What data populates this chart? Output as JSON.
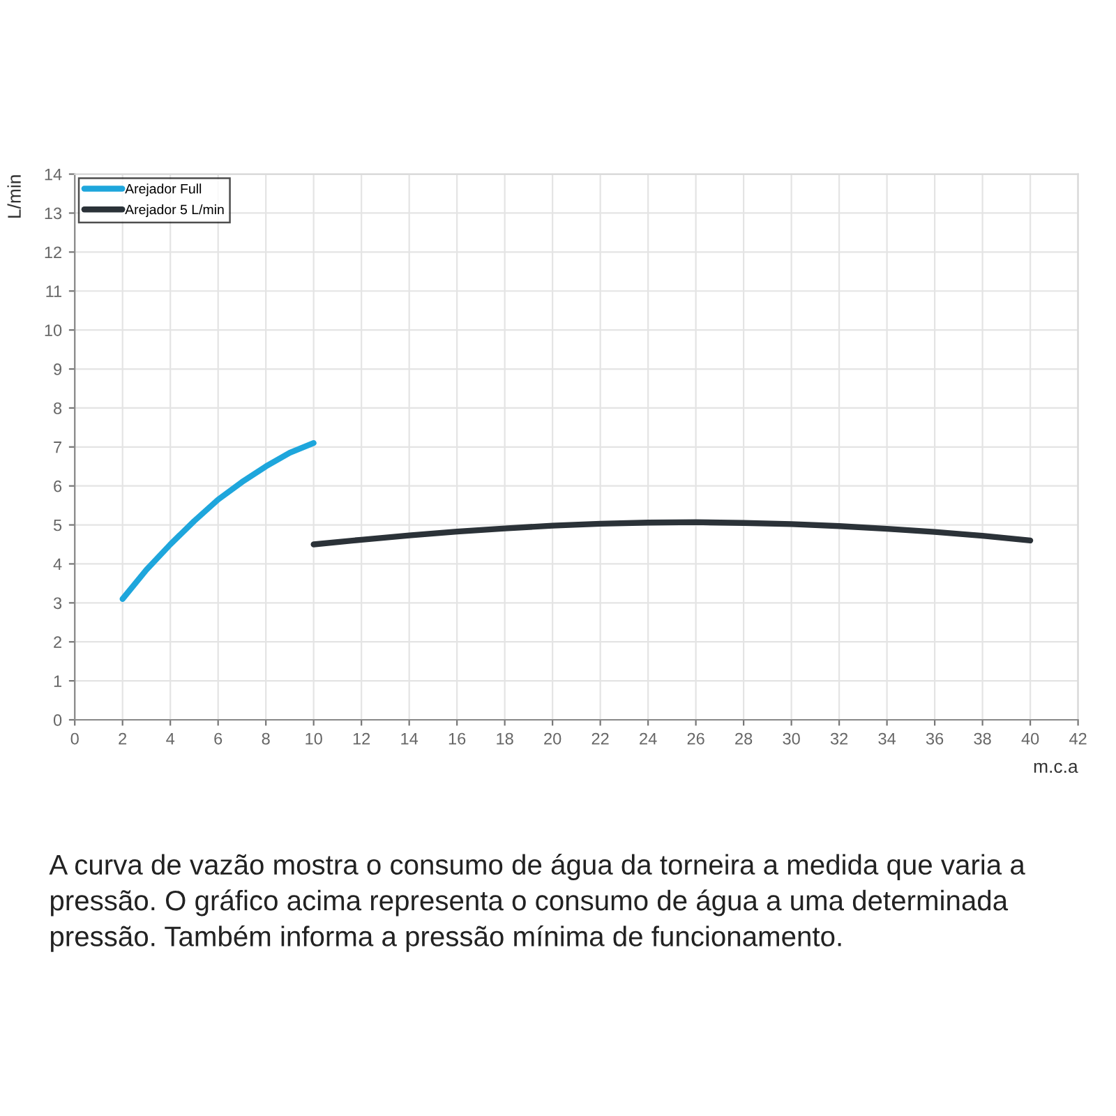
{
  "chart_data": {
    "type": "line",
    "xlabel": "m.c.a",
    "ylabel": "L/min",
    "series": [
      {
        "name": "Arejador Full",
        "color": "#1ea6dc",
        "x": [
          2,
          3,
          4,
          5,
          6,
          7,
          8,
          9,
          10
        ],
        "values": [
          3.1,
          3.85,
          4.5,
          5.1,
          5.65,
          6.1,
          6.5,
          6.85,
          7.1
        ]
      },
      {
        "name": "Arejador 5 L/min",
        "color": "#2b3238",
        "x": [
          10,
          12,
          14,
          16,
          18,
          20,
          22,
          24,
          26,
          28,
          30,
          32,
          34,
          36,
          38,
          40
        ],
        "values": [
          4.5,
          4.62,
          4.73,
          4.83,
          4.91,
          4.98,
          5.03,
          5.06,
          5.07,
          5.05,
          5.02,
          4.97,
          4.9,
          4.82,
          4.72,
          4.6
        ]
      }
    ],
    "xlim": [
      0,
      42
    ],
    "xticks": [
      0,
      2,
      4,
      6,
      8,
      10,
      12,
      14,
      16,
      18,
      20,
      22,
      24,
      26,
      28,
      30,
      32,
      34,
      36,
      38,
      40,
      42
    ],
    "ylim": [
      0,
      14
    ],
    "yticks": [
      0,
      1,
      2,
      3,
      4,
      5,
      6,
      7,
      8,
      9,
      10,
      11,
      12,
      13,
      14
    ],
    "grid": true,
    "legend": "top left",
    "marker": "none",
    "line_style": "solid",
    "annotations": [
      "A curva de vazão mostra o consumo de água da torneira a medida que varia a pressão. O gráfico acima representa o consumo de água a uma determinada pressão. Também informa a pressão mínima de funcionamento."
    ]
  }
}
